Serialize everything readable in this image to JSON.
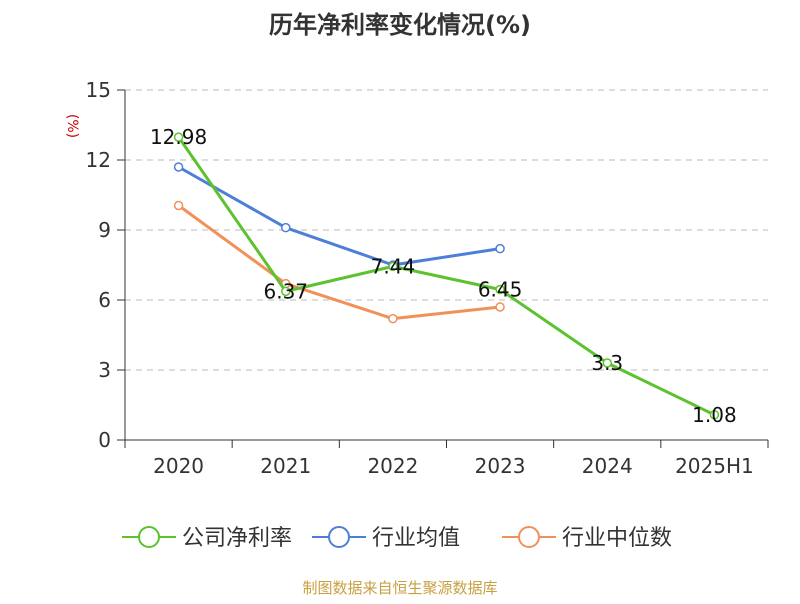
{
  "chart_data": {
    "type": "line",
    "title": "历年净利率变化情况(%)",
    "ylabel": "(%)",
    "xlabel": "",
    "ylim": [
      0,
      15
    ],
    "yticks": [
      0,
      3,
      6,
      9,
      12,
      15
    ],
    "categories": [
      "2020",
      "2021",
      "2022",
      "2023",
      "2024",
      "2025H1"
    ],
    "grid": true,
    "legend_position": "bottom",
    "series": [
      {
        "name": "公司净利率",
        "color": "#5cc22e",
        "values": [
          12.98,
          6.37,
          7.44,
          6.45,
          3.3,
          1.08
        ],
        "labels": [
          "12.98",
          "6.37",
          "7.44",
          "6.45",
          "3.3",
          "1.08"
        ]
      },
      {
        "name": "行业均值",
        "color": "#4e7fd8",
        "values": [
          11.7,
          9.1,
          7.5,
          8.2,
          null,
          null
        ]
      },
      {
        "name": "行业中位数",
        "color": "#f2905a",
        "values": [
          10.05,
          6.7,
          5.2,
          5.7,
          null,
          null
        ]
      }
    ],
    "source": "制图数据来自恒生聚源数据库"
  },
  "colors": {
    "title": "#333333",
    "axis_label": "#cc0000",
    "source": "#c8a040",
    "grid": "#bbbbbb",
    "axis": "#333333"
  }
}
